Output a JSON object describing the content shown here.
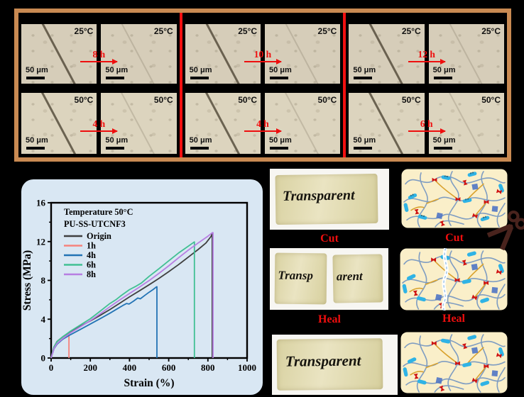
{
  "micrographs": {
    "scale_label": "50 μm",
    "rows": [
      {
        "temp": "25°C",
        "groups": [
          {
            "time": "8 h"
          },
          {
            "time": "10 h"
          },
          {
            "time": "12 h"
          }
        ]
      },
      {
        "temp": "50°C",
        "groups": [
          {
            "time": "4 h"
          },
          {
            "time": "4 h"
          },
          {
            "time": "6 h"
          }
        ]
      }
    ]
  },
  "chart_data": {
    "type": "line",
    "legend_title": [
      "Temperature 50°C",
      "PU-SS-UTCNF3"
    ],
    "xlabel": "Strain (%)",
    "ylabel": "Stress (MPa)",
    "xlim": [
      0,
      1000
    ],
    "ylim": [
      0,
      16
    ],
    "xticks": [
      0,
      200,
      400,
      600,
      800,
      1000
    ],
    "yticks": [
      0,
      4,
      8,
      12,
      16
    ],
    "x_minor": 100,
    "y_minor": 2,
    "grid": false,
    "legend_position": "top-left",
    "series": [
      {
        "name": "Origin",
        "color": "#3f3f3f",
        "points": [
          [
            0,
            0
          ],
          [
            6,
            0.55
          ],
          [
            15,
            1.15
          ],
          [
            30,
            1.7
          ],
          [
            60,
            2.2
          ],
          [
            100,
            2.72
          ],
          [
            150,
            3.28
          ],
          [
            200,
            3.82
          ],
          [
            250,
            4.4
          ],
          [
            300,
            5.0
          ],
          [
            350,
            5.65
          ],
          [
            400,
            6.3
          ],
          [
            450,
            6.92
          ],
          [
            500,
            7.55
          ],
          [
            550,
            8.2
          ],
          [
            600,
            8.9
          ],
          [
            650,
            9.62
          ],
          [
            700,
            10.4
          ],
          [
            750,
            11.18
          ],
          [
            790,
            11.85
          ],
          [
            815,
            12.5
          ],
          [
            822,
            12.78
          ],
          [
            822,
            0
          ]
        ]
      },
      {
        "name": "1h",
        "color": "#f5837c",
        "points": [
          [
            0,
            0
          ],
          [
            6,
            0.45
          ],
          [
            15,
            1.0
          ],
          [
            30,
            1.45
          ],
          [
            50,
            1.8
          ],
          [
            70,
            2.08
          ],
          [
            88,
            2.3
          ],
          [
            91,
            2.35
          ],
          [
            91,
            0
          ]
        ]
      },
      {
        "name": "4h",
        "color": "#2273b4",
        "points": [
          [
            0,
            0
          ],
          [
            6,
            0.42
          ],
          [
            15,
            0.95
          ],
          [
            30,
            1.42
          ],
          [
            60,
            1.95
          ],
          [
            100,
            2.42
          ],
          [
            150,
            2.95
          ],
          [
            200,
            3.5
          ],
          [
            250,
            4.05
          ],
          [
            300,
            4.62
          ],
          [
            340,
            5.1
          ],
          [
            365,
            5.4
          ],
          [
            385,
            5.62
          ],
          [
            398,
            5.56
          ],
          [
            420,
            5.85
          ],
          [
            442,
            6.18
          ],
          [
            455,
            6.1
          ],
          [
            478,
            6.45
          ],
          [
            500,
            6.78
          ],
          [
            520,
            7.05
          ],
          [
            537,
            7.32
          ],
          [
            540,
            7.35
          ],
          [
            540,
            0
          ]
        ]
      },
      {
        "name": "6h",
        "color": "#41c093",
        "points": [
          [
            0,
            0
          ],
          [
            6,
            0.5
          ],
          [
            15,
            1.15
          ],
          [
            30,
            1.68
          ],
          [
            60,
            2.2
          ],
          [
            100,
            2.78
          ],
          [
            150,
            3.42
          ],
          [
            200,
            4.05
          ],
          [
            250,
            4.82
          ],
          [
            300,
            5.62
          ],
          [
            330,
            6.0
          ],
          [
            355,
            6.4
          ],
          [
            400,
            7.05
          ],
          [
            435,
            7.42
          ],
          [
            460,
            7.72
          ],
          [
            500,
            8.42
          ],
          [
            550,
            9.2
          ],
          [
            600,
            10.02
          ],
          [
            650,
            10.82
          ],
          [
            700,
            11.52
          ],
          [
            728,
            11.92
          ],
          [
            731,
            11.97
          ],
          [
            731,
            0
          ]
        ]
      },
      {
        "name": "8h",
        "color": "#b77ee2",
        "points": [
          [
            0,
            0
          ],
          [
            6,
            0.42
          ],
          [
            15,
            0.98
          ],
          [
            30,
            1.48
          ],
          [
            60,
            2.02
          ],
          [
            100,
            2.6
          ],
          [
            150,
            3.22
          ],
          [
            200,
            3.85
          ],
          [
            250,
            4.55
          ],
          [
            300,
            5.28
          ],
          [
            350,
            5.98
          ],
          [
            400,
            6.65
          ],
          [
            450,
            7.3
          ],
          [
            500,
            7.98
          ],
          [
            550,
            8.72
          ],
          [
            600,
            9.5
          ],
          [
            650,
            10.32
          ],
          [
            700,
            11.12
          ],
          [
            750,
            11.85
          ],
          [
            800,
            12.55
          ],
          [
            823,
            12.92
          ],
          [
            826,
            12.92
          ],
          [
            826,
            0
          ]
        ]
      }
    ]
  },
  "film_photos": {
    "text": "Transparent",
    "split_left": "Transp",
    "split_right": "arent",
    "cut_label": "Cut",
    "heal_label": "Heal"
  },
  "schematics": {
    "cut_label": "Cut",
    "heal_label": "Heal",
    "ss_label": "s-s",
    "icons": {
      "scissors": "✂"
    }
  },
  "colors": {
    "background": "#000000",
    "micrograph_border": "#c98a52",
    "micrograph_beige": "#d6cdb9",
    "divider_red": "#f21010",
    "accent_red": "#ee0e0e",
    "chart_panel_blue": "#d9e7f3",
    "schematic_cream": "#faefc9",
    "film_yellow": "#d9d2a2",
    "capsule_blue": "#2fb3e5",
    "chain_blue": "#7f9dc2",
    "gold_link": "#d9a22e",
    "dark_square_blue": "#4f74c4",
    "red_motif": "#cf1212",
    "scissors_brown": "#49231d"
  }
}
